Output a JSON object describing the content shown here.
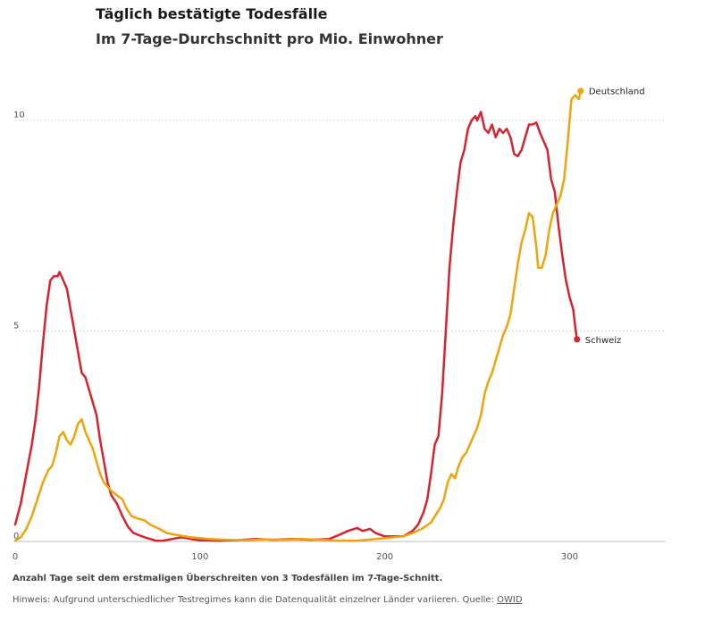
{
  "title": "Täglich bestätigte Todesfälle",
  "subtitle": "Im 7-Tage-Durchschnitt pro Mio. Einwohner",
  "footer": {
    "xlabel": "Anzahl Tage seit dem erstmaligen Überschreiten von 3 Todesfällen im 7-Tage-Schnitt.",
    "hint": "Hinweis: Aufgrund unterschiedlicher Testregimes kann die Datenqualität einzelner Länder variieren. Quelle:",
    "source": "OWID"
  },
  "chart_data": {
    "type": "line",
    "xlim": [
      0,
      352
    ],
    "ylim": [
      0,
      10.8
    ],
    "xticks": [
      0,
      100,
      200,
      300
    ],
    "yticks": [
      0,
      5,
      10
    ],
    "grid": "horizontal-dotted",
    "series": [
      {
        "name": "Schweiz",
        "color": "#d7232f",
        "points": [
          [
            0,
            0.4
          ],
          [
            3,
            0.9
          ],
          [
            6,
            1.6
          ],
          [
            9,
            2.3
          ],
          [
            11,
            2.9
          ],
          [
            13,
            3.7
          ],
          [
            15,
            4.7
          ],
          [
            17,
            5.6
          ],
          [
            19,
            6.2
          ],
          [
            21,
            6.3
          ],
          [
            23,
            6.3
          ],
          [
            24,
            6.4
          ],
          [
            26,
            6.2
          ],
          [
            28,
            6.0
          ],
          [
            30,
            5.5
          ],
          [
            32,
            5.0
          ],
          [
            34,
            4.5
          ],
          [
            36,
            4.0
          ],
          [
            38,
            3.9
          ],
          [
            40,
            3.6
          ],
          [
            42,
            3.3
          ],
          [
            44,
            3.0
          ],
          [
            46,
            2.4
          ],
          [
            48,
            1.9
          ],
          [
            50,
            1.4
          ],
          [
            52,
            1.1
          ],
          [
            55,
            0.9
          ],
          [
            58,
            0.6
          ],
          [
            61,
            0.35
          ],
          [
            64,
            0.2
          ],
          [
            67,
            0.15
          ],
          [
            70,
            0.1
          ],
          [
            73,
            0.06
          ],
          [
            76,
            0.02
          ],
          [
            80,
            0.02
          ],
          [
            85,
            0.06
          ],
          [
            90,
            0.1
          ],
          [
            95,
            0.06
          ],
          [
            100,
            0.03
          ],
          [
            110,
            0.02
          ],
          [
            120,
            0.03
          ],
          [
            130,
            0.06
          ],
          [
            140,
            0.04
          ],
          [
            150,
            0.06
          ],
          [
            160,
            0.04
          ],
          [
            170,
            0.06
          ],
          [
            175,
            0.15
          ],
          [
            180,
            0.25
          ],
          [
            185,
            0.32
          ],
          [
            188,
            0.25
          ],
          [
            192,
            0.3
          ],
          [
            195,
            0.2
          ],
          [
            200,
            0.12
          ],
          [
            210,
            0.12
          ],
          [
            215,
            0.25
          ],
          [
            218,
            0.4
          ],
          [
            221,
            0.7
          ],
          [
            223,
            1.0
          ],
          [
            225,
            1.6
          ],
          [
            227,
            2.3
          ],
          [
            229,
            2.5
          ],
          [
            231,
            3.5
          ],
          [
            233,
            5.0
          ],
          [
            235,
            6.5
          ],
          [
            237,
            7.5
          ],
          [
            239,
            8.3
          ],
          [
            241,
            9.0
          ],
          [
            243,
            9.3
          ],
          [
            245,
            9.8
          ],
          [
            247,
            10.0
          ],
          [
            249,
            10.1
          ],
          [
            250,
            10.0
          ],
          [
            252,
            10.2
          ],
          [
            254,
            9.8
          ],
          [
            256,
            9.7
          ],
          [
            258,
            9.9
          ],
          [
            260,
            9.6
          ],
          [
            262,
            9.8
          ],
          [
            264,
            9.7
          ],
          [
            266,
            9.8
          ],
          [
            268,
            9.6
          ],
          [
            270,
            9.2
          ],
          [
            272,
            9.15
          ],
          [
            274,
            9.3
          ],
          [
            276,
            9.6
          ],
          [
            278,
            9.9
          ],
          [
            280,
            9.9
          ],
          [
            282,
            9.95
          ],
          [
            284,
            9.7
          ],
          [
            286,
            9.5
          ],
          [
            288,
            9.3
          ],
          [
            290,
            8.6
          ],
          [
            292,
            8.3
          ],
          [
            294,
            7.5
          ],
          [
            296,
            6.8
          ],
          [
            298,
            6.2
          ],
          [
            300,
            5.8
          ],
          [
            302,
            5.5
          ],
          [
            303,
            5.1
          ],
          [
            304,
            4.8
          ]
        ]
      },
      {
        "name": "Deutschland",
        "color": "#f0a30a",
        "points": [
          [
            0,
            0.02
          ],
          [
            3,
            0.1
          ],
          [
            6,
            0.3
          ],
          [
            9,
            0.6
          ],
          [
            12,
            1.0
          ],
          [
            15,
            1.4
          ],
          [
            18,
            1.7
          ],
          [
            20,
            1.8
          ],
          [
            22,
            2.1
          ],
          [
            24,
            2.5
          ],
          [
            26,
            2.6
          ],
          [
            28,
            2.4
          ],
          [
            30,
            2.3
          ],
          [
            32,
            2.5
          ],
          [
            34,
            2.8
          ],
          [
            36,
            2.9
          ],
          [
            38,
            2.6
          ],
          [
            40,
            2.4
          ],
          [
            42,
            2.2
          ],
          [
            44,
            1.9
          ],
          [
            46,
            1.6
          ],
          [
            48,
            1.4
          ],
          [
            50,
            1.3
          ],
          [
            52,
            1.2
          ],
          [
            55,
            1.1
          ],
          [
            58,
            1.0
          ],
          [
            60,
            0.8
          ],
          [
            63,
            0.6
          ],
          [
            66,
            0.55
          ],
          [
            70,
            0.5
          ],
          [
            73,
            0.4
          ],
          [
            78,
            0.3
          ],
          [
            82,
            0.2
          ],
          [
            88,
            0.15
          ],
          [
            95,
            0.1
          ],
          [
            105,
            0.06
          ],
          [
            115,
            0.04
          ],
          [
            125,
            0.03
          ],
          [
            135,
            0.05
          ],
          [
            145,
            0.04
          ],
          [
            155,
            0.06
          ],
          [
            165,
            0.04
          ],
          [
            175,
            0.02
          ],
          [
            185,
            0.02
          ],
          [
            195,
            0.06
          ],
          [
            205,
            0.1
          ],
          [
            210,
            0.12
          ],
          [
            215,
            0.2
          ],
          [
            220,
            0.3
          ],
          [
            225,
            0.45
          ],
          [
            230,
            0.8
          ],
          [
            232,
            1.0
          ],
          [
            234,
            1.4
          ],
          [
            236,
            1.6
          ],
          [
            238,
            1.5
          ],
          [
            240,
            1.8
          ],
          [
            242,
            2.0
          ],
          [
            244,
            2.1
          ],
          [
            246,
            2.3
          ],
          [
            248,
            2.5
          ],
          [
            250,
            2.7
          ],
          [
            252,
            3.0
          ],
          [
            254,
            3.5
          ],
          [
            256,
            3.8
          ],
          [
            258,
            4.0
          ],
          [
            260,
            4.3
          ],
          [
            262,
            4.6
          ],
          [
            264,
            4.9
          ],
          [
            266,
            5.1
          ],
          [
            268,
            5.4
          ],
          [
            270,
            6.0
          ],
          [
            272,
            6.6
          ],
          [
            274,
            7.1
          ],
          [
            276,
            7.4
          ],
          [
            278,
            7.8
          ],
          [
            280,
            7.7
          ],
          [
            282,
            7.0
          ],
          [
            283,
            6.5
          ],
          [
            285,
            6.5
          ],
          [
            287,
            6.8
          ],
          [
            289,
            7.4
          ],
          [
            291,
            7.8
          ],
          [
            293,
            8.0
          ],
          [
            295,
            8.2
          ],
          [
            297,
            8.6
          ],
          [
            299,
            9.5
          ],
          [
            301,
            10.5
          ],
          [
            303,
            10.6
          ],
          [
            305,
            10.5
          ],
          [
            306,
            10.7
          ]
        ]
      }
    ]
  }
}
